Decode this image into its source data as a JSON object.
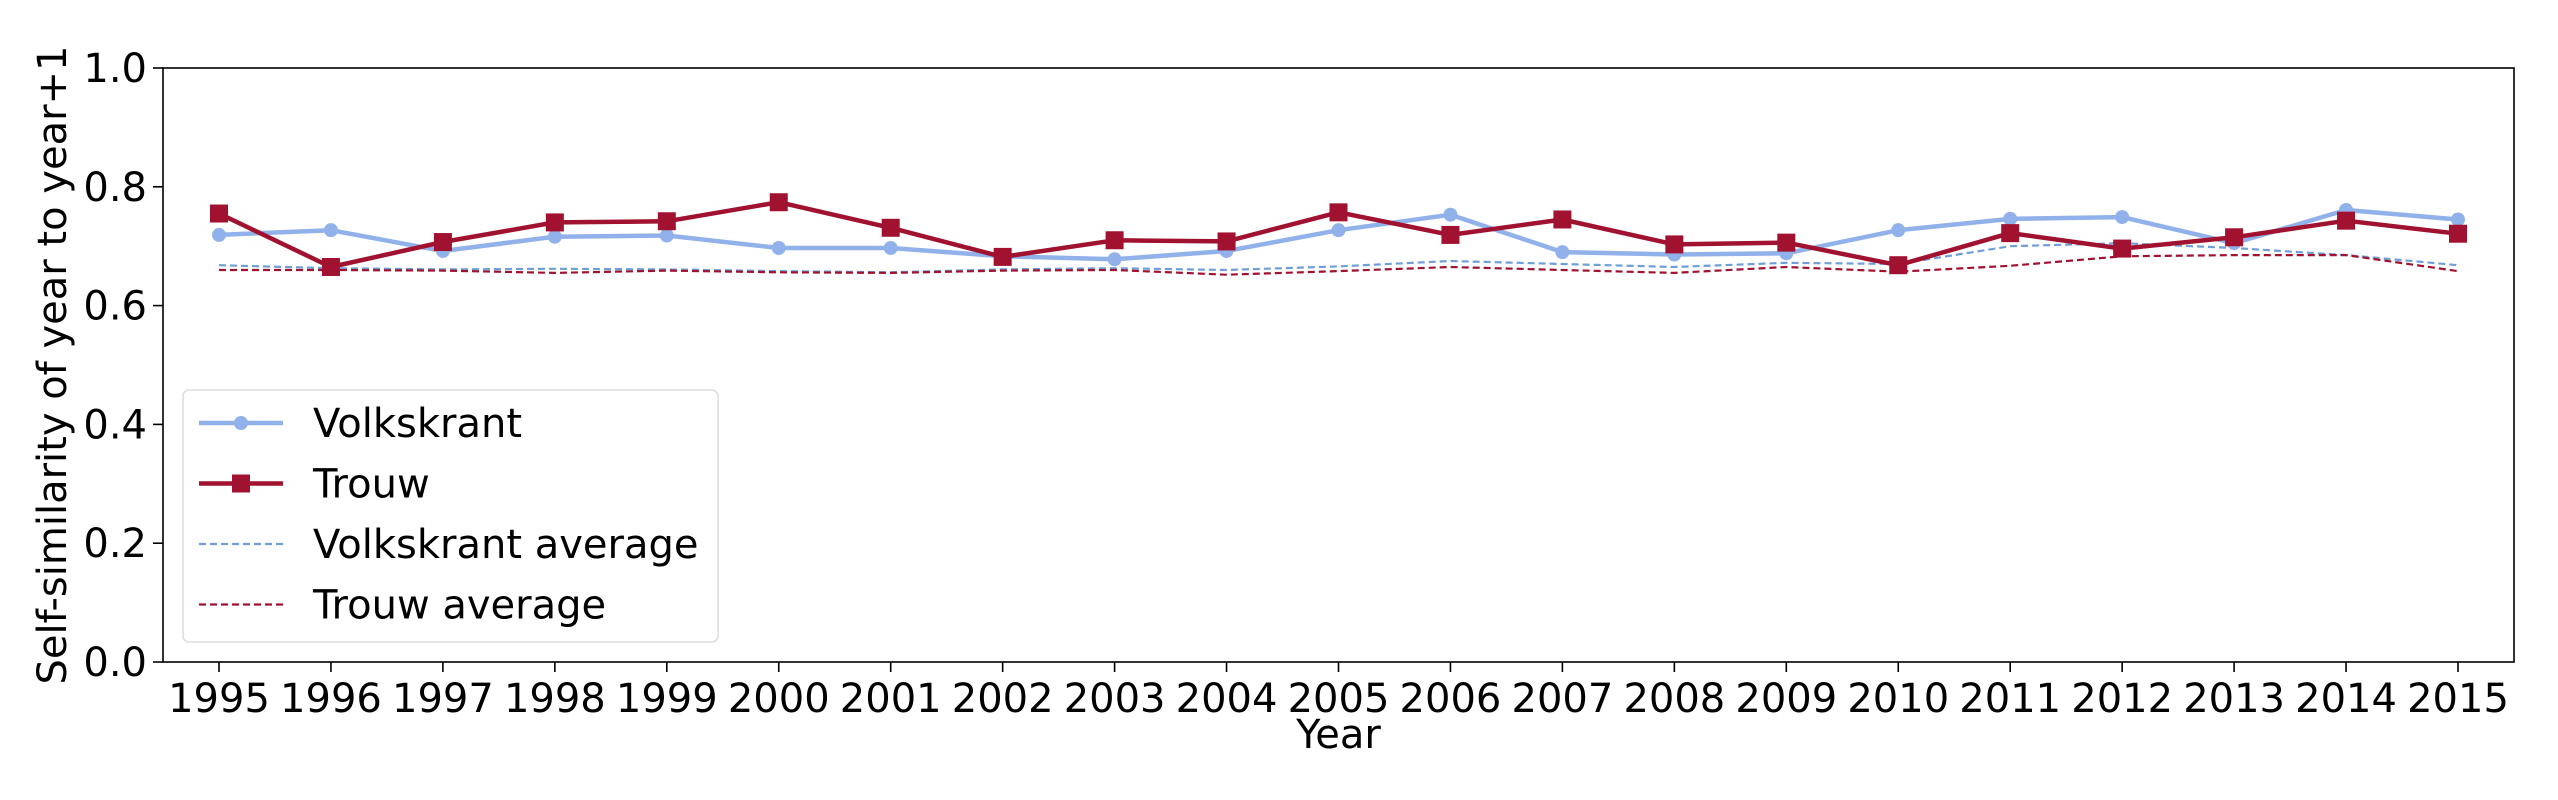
{
  "chart_data": {
    "type": "line",
    "xlabel": "Year",
    "ylabel": "Self-similarity of year to year+1",
    "ylim": [
      0.0,
      1.0
    ],
    "yticks": [
      "0.0",
      "0.2",
      "0.4",
      "0.6",
      "0.8",
      "1.0"
    ],
    "grid": false,
    "legend_position": "lower-left",
    "x": [
      "1995",
      "1996",
      "1997",
      "1998",
      "1999",
      "2000",
      "2001",
      "2002",
      "2003",
      "2004",
      "2005",
      "2006",
      "2007",
      "2008",
      "2009",
      "2010",
      "2011",
      "2012",
      "2013",
      "2014",
      "2015"
    ],
    "series": [
      {
        "name": "Volkskrant",
        "style": "solid-circle",
        "color": "#91b1ea",
        "values": [
          0.719,
          0.727,
          0.692,
          0.716,
          0.718,
          0.697,
          0.697,
          0.683,
          0.678,
          0.692,
          0.727,
          0.753,
          0.69,
          0.686,
          0.688,
          0.727,
          0.746,
          0.749,
          0.705,
          0.761,
          0.745
        ]
      },
      {
        "name": "Trouw",
        "style": "solid-square",
        "color": "#a0122f",
        "values": [
          0.755,
          0.665,
          0.707,
          0.74,
          0.742,
          0.774,
          0.731,
          0.682,
          0.71,
          0.708,
          0.757,
          0.719,
          0.745,
          0.703,
          0.706,
          0.668,
          0.722,
          0.696,
          0.715,
          0.743,
          0.721
        ]
      },
      {
        "name": "Volkskrant average",
        "style": "dashed",
        "color": "#6f9ed8",
        "values": [
          0.668,
          0.663,
          0.661,
          0.662,
          0.661,
          0.658,
          0.656,
          0.661,
          0.663,
          0.66,
          0.666,
          0.675,
          0.67,
          0.665,
          0.672,
          0.67,
          0.7,
          0.705,
          0.697,
          0.685,
          0.668
        ]
      },
      {
        "name": "Trouw average",
        "style": "dashed",
        "color": "#a0122f",
        "values": [
          0.66,
          0.66,
          0.659,
          0.655,
          0.659,
          0.656,
          0.655,
          0.659,
          0.66,
          0.652,
          0.658,
          0.665,
          0.66,
          0.655,
          0.665,
          0.657,
          0.667,
          0.683,
          0.685,
          0.685,
          0.658
        ]
      }
    ]
  }
}
